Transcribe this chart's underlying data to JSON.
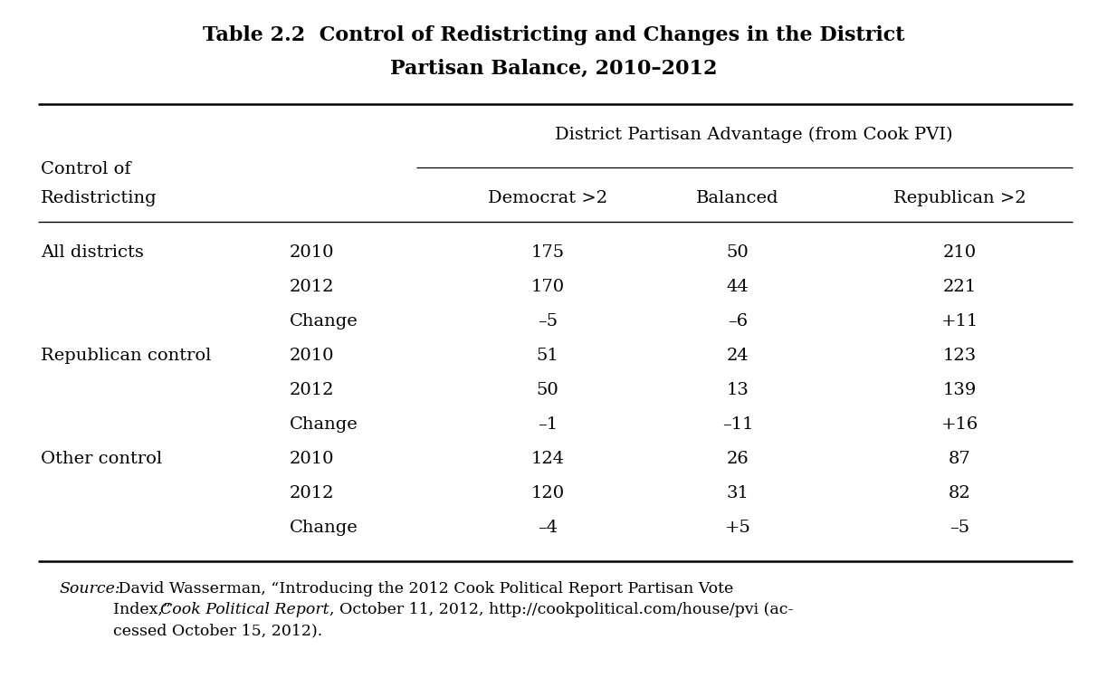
{
  "title_line1": "Table 2.2  Control of Redistricting and Changes in the District",
  "title_line2": "Partisan Balance, 2010–2012",
  "col_header_span": "District Partisan Advantage (from Cook PVI)",
  "col_header_left1": "Control of",
  "col_header_left2": "Redistricting",
  "col1": "Democrat >2",
  "col2": "Balanced",
  "col3": "Republican >2",
  "rows": [
    {
      "group": "All districts",
      "year": "2010",
      "d": "175",
      "b": "50",
      "r": "210"
    },
    {
      "group": "",
      "year": "2012",
      "d": "170",
      "b": "44",
      "r": "221"
    },
    {
      "group": "",
      "year": "Change",
      "d": "–5",
      "b": "–6",
      "r": "+11"
    },
    {
      "group": "Republican control",
      "year": "2010",
      "d": "51",
      "b": "24",
      "r": "123"
    },
    {
      "group": "",
      "year": "2012",
      "d": "50",
      "b": "13",
      "r": "139"
    },
    {
      "group": "",
      "year": "Change",
      "d": "–1",
      "b": "–11",
      "r": "+16"
    },
    {
      "group": "Other control",
      "year": "2010",
      "d": "124",
      "b": "26",
      "r": "87"
    },
    {
      "group": "",
      "year": "2012",
      "d": "120",
      "b": "31",
      "r": "82"
    },
    {
      "group": "",
      "year": "Change",
      "d": "–4",
      "b": "+5",
      "r": "–5"
    }
  ],
  "bg_color": "#ffffff",
  "text_color": "#000000",
  "title_fontsize": 16,
  "body_fontsize": 14,
  "source_fontsize": 12.5
}
